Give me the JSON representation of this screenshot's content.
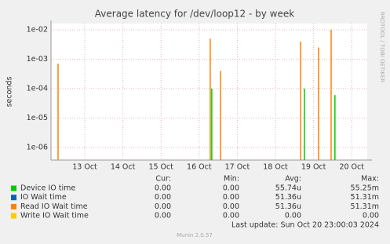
{
  "chart_data": {
    "type": "line",
    "title": "Average latency for /dev/loop12 - by week",
    "y_label": "seconds",
    "side_text": "RRDTOOL / TOBI OETIKER",
    "log_scale": true,
    "grid": true,
    "x": [
      12.8,
      16.79,
      16.83,
      17.06,
      19.16,
      19.26,
      19.63,
      19.96,
      20.06
    ],
    "xlim": [
      12.615,
      20.907
    ],
    "xticks": [
      {
        "value": 13.5,
        "label": "13 Oct"
      },
      {
        "value": 14.5,
        "label": "14 Oct"
      },
      {
        "value": 15.5,
        "label": "15 Oct"
      },
      {
        "value": 16.5,
        "label": "16 Oct"
      },
      {
        "value": 17.5,
        "label": "17 Oct"
      },
      {
        "value": 18.5,
        "label": "18 Oct"
      },
      {
        "value": 19.5,
        "label": "19 Oct"
      },
      {
        "value": 20.5,
        "label": "20 Oct"
      }
    ],
    "ylim": [
      3.7e-07,
      0.0163
    ],
    "yticks": [
      {
        "value": 1e-06,
        "label": "1e-06"
      },
      {
        "value": 1e-05,
        "label": "1e-05"
      },
      {
        "value": 0.0001,
        "label": "1e-04"
      },
      {
        "value": 0.001,
        "label": "1e-03"
      },
      {
        "value": 0.01,
        "label": "1e-02"
      }
    ],
    "columns": [
      "Cur:",
      "Min:",
      "Avg:",
      "Max:"
    ],
    "series": [
      {
        "name": "Device IO time",
        "color": "#00cc00",
        "values": [
          null,
          null,
          0.0001,
          null,
          null,
          0.0001,
          null,
          null,
          6e-05
        ],
        "cur": "0.00",
        "min": "0.00",
        "avg": "55.74u",
        "max": "55.25m"
      },
      {
        "name": "IO Wait time",
        "color": "#0066b3",
        "values": [
          null,
          null,
          null,
          null,
          null,
          null,
          null,
          null,
          null
        ],
        "cur": "0.00",
        "min": "0.00",
        "avg": "51.36u",
        "max": "51.31m"
      },
      {
        "name": "Read IO Wait time",
        "color": "#ff8000",
        "values": [
          0.0007,
          0.005,
          null,
          0.0004,
          0.004,
          null,
          0.0025,
          0.01,
          null
        ],
        "cur": "0.00",
        "min": "0.00",
        "avg": "51.36u",
        "max": "51.31m"
      },
      {
        "name": "Write IO Wait time",
        "color": "#ffcc00",
        "values": [
          null,
          null,
          null,
          null,
          null,
          null,
          null,
          null,
          null
        ],
        "cur": "0.00",
        "min": "0.00",
        "avg": "0.00",
        "max": "0.00"
      }
    ],
    "last_update": "Last update: Sun Oct 20 23:00:03 2024",
    "footer": "Munin 2.0.57"
  }
}
